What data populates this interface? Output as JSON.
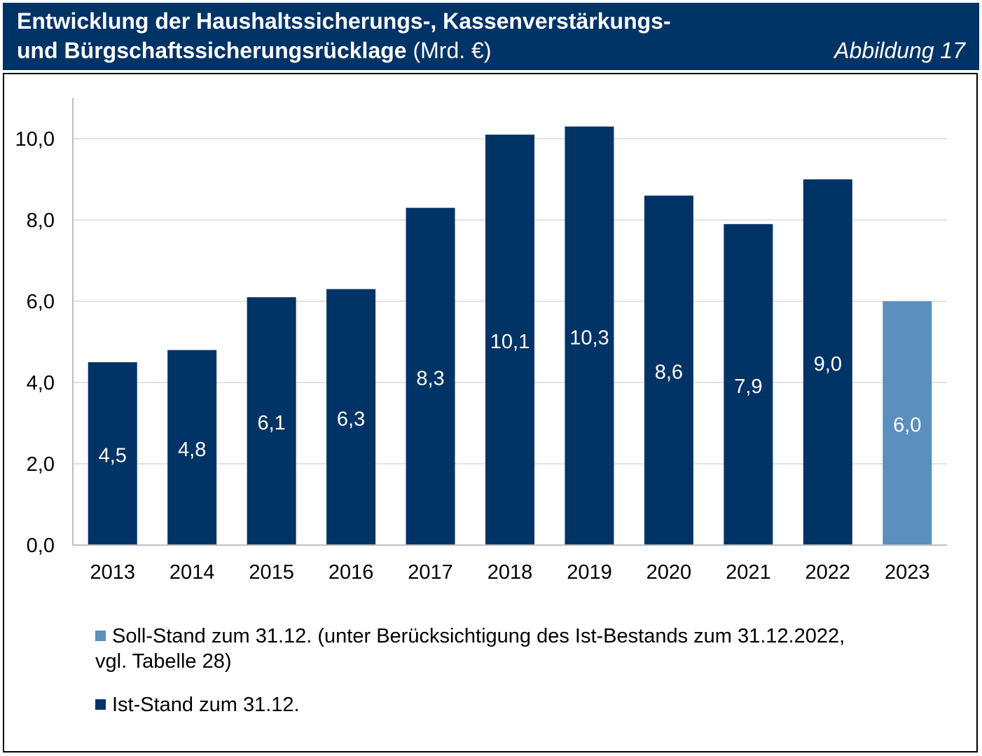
{
  "header": {
    "title_line1": "Entwicklung der Haushaltssicherungs-, Kassenverstärkungs-",
    "title_line2_bold": "und Bürgschaftssicherungsrücklage",
    "title_line2_unit": " (Mrd. €)",
    "figure_label": "Abbildung 17"
  },
  "colors": {
    "header_bg": "#003366",
    "ist": "#003366",
    "soll": "#5b8fbe",
    "grid": "#d9d9d9"
  },
  "legend": {
    "soll_line1": "Soll-Stand zum 31.12. (unter Berücksichtigung des Ist-Bestands zum 31.12.2022,",
    "soll_line2": "vgl. Tabelle 28)",
    "ist": "Ist-Stand zum 31.12."
  },
  "chart_data": {
    "type": "bar",
    "title": "Entwicklung der Haushaltssicherungs-, Kassenverstärkungs- und Bürgschaftssicherungsrücklage (Mrd. €)",
    "categories": [
      "2013",
      "2014",
      "2015",
      "2016",
      "2017",
      "2018",
      "2019",
      "2020",
      "2021",
      "2022",
      "2023"
    ],
    "values": [
      4.5,
      4.8,
      6.1,
      6.3,
      8.3,
      10.1,
      10.3,
      8.6,
      7.9,
      9.0,
      6.0
    ],
    "labels": [
      "4,5",
      "4,8",
      "6,1",
      "6,3",
      "8,3",
      "10,1",
      "10,3",
      "8,6",
      "7,9",
      "9,0",
      "6,0"
    ],
    "series_type": [
      "ist",
      "ist",
      "ist",
      "ist",
      "ist",
      "ist",
      "ist",
      "ist",
      "ist",
      "ist",
      "soll"
    ],
    "yticks": [
      0,
      2,
      4,
      6,
      8,
      10
    ],
    "ytick_labels": [
      "0,0",
      "2,0",
      "4,0",
      "6,0",
      "8,0",
      "10,0"
    ],
    "ylim": [
      0,
      11
    ],
    "xlabel": "",
    "ylabel": "",
    "grid": true
  }
}
